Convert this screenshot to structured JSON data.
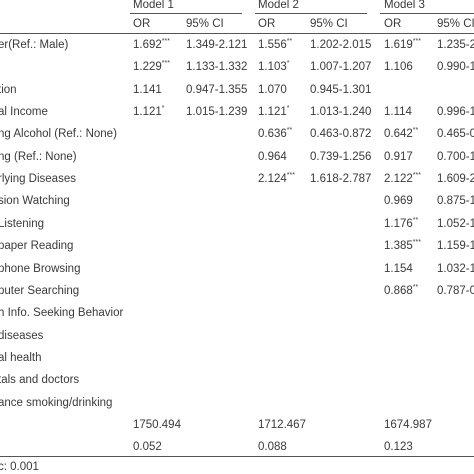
{
  "table": {
    "models": [
      "Model 1",
      "Model 2",
      "Model 3"
    ],
    "subheaders": [
      "OR",
      "95% CI",
      "OR",
      "95% CI",
      "OR",
      "95% CI"
    ],
    "rows": [
      {
        "label": "er(Ref.: Male)",
        "cells": [
          {
            "text": "1.692",
            "sup": "***"
          },
          {
            "text": "1.349-2.121"
          },
          {
            "text": "1.556",
            "sup": "**"
          },
          {
            "text": "1.202-2.015"
          },
          {
            "text": "1.619",
            "sup": "***"
          },
          {
            "text": "1.235-2."
          }
        ]
      },
      {
        "label": null,
        "cells": [
          {
            "text": "1.229",
            "sup": "***"
          },
          {
            "text": "1.133-1.332"
          },
          {
            "text": "1.103",
            "sup": "*"
          },
          {
            "text": "1.007-1.207"
          },
          {
            "text": "1.106"
          },
          {
            "text": "0.990-1."
          }
        ]
      },
      {
        "label": "tion",
        "cells": [
          {
            "text": "1.141"
          },
          {
            "text": "0.947-1.355"
          },
          {
            "text": "1.070"
          },
          {
            "text": "0.945-1.301"
          },
          null,
          null
        ]
      },
      {
        "label": "al Income",
        "cells": [
          {
            "text": "1.121",
            "sup": "*"
          },
          {
            "text": "1.015-1.239"
          },
          {
            "text": "1.121",
            "sup": "*"
          },
          {
            "text": "1.013-1.240"
          },
          {
            "text": "1.114"
          },
          {
            "text": "0.996-1"
          }
        ]
      },
      {
        "label": "ng Alcohol (Ref.: None)",
        "cells": [
          null,
          null,
          {
            "text": "0.636",
            "sup": "**"
          },
          {
            "text": "0.463-0.872"
          },
          {
            "text": "0.642",
            "sup": "**"
          },
          {
            "text": "0.465-0"
          }
        ]
      },
      {
        "label": "ng (Ref.: None)",
        "cells": [
          null,
          null,
          {
            "text": "0.964"
          },
          {
            "text": "0.739-1.256"
          },
          {
            "text": "0.917"
          },
          {
            "text": "0.700-1"
          }
        ]
      },
      {
        "label": "rlying Diseases",
        "cells": [
          null,
          null,
          {
            "text": "2.124",
            "sup": "***"
          },
          {
            "text": "1.618-2.787"
          },
          {
            "text": "2.122",
            "sup": "***"
          },
          {
            "text": "1.609-2"
          }
        ]
      },
      {
        "label": "sion Watching",
        "cells": [
          null,
          null,
          null,
          null,
          {
            "text": "0.969"
          },
          {
            "text": "0.875-1"
          }
        ]
      },
      {
        "label": " Listening",
        "cells": [
          null,
          null,
          null,
          null,
          {
            "text": "1.176",
            "sup": "**"
          },
          {
            "text": "1.052-1"
          }
        ]
      },
      {
        "label": "paper Reading",
        "cells": [
          null,
          null,
          null,
          null,
          {
            "text": "1.385",
            "sup": "***"
          },
          {
            "text": "1.159-1"
          }
        ]
      },
      {
        "label": "phone Browsing",
        "cells": [
          null,
          null,
          null,
          null,
          {
            "text": "1.154"
          },
          {
            "text": "1.032-1"
          }
        ]
      },
      {
        "label": "puter Searching",
        "cells": [
          null,
          null,
          null,
          null,
          {
            "text": "0.868",
            "sup": "**"
          },
          {
            "text": "0.787-0"
          }
        ]
      },
      {
        "label": "h Info. Seeking Behavior",
        "cells": [
          null,
          null,
          null,
          null,
          null,
          null
        ]
      },
      {
        "label": "diseases",
        "cells": [
          null,
          null,
          null,
          null,
          null,
          null
        ]
      },
      {
        "label": "al health",
        "cells": [
          null,
          null,
          null,
          null,
          null,
          null
        ]
      },
      {
        "label": "tals and doctors",
        "cells": [
          null,
          null,
          null,
          null,
          null,
          null
        ]
      },
      {
        "label": "ance smoking/drinking",
        "cells": [
          null,
          null,
          null,
          null,
          null,
          null
        ]
      },
      {
        "label": null,
        "cells": [
          {
            "text": "1750.494"
          },
          null,
          {
            "text": "1712.467"
          },
          null,
          {
            "text": "1674.987"
          },
          null
        ]
      },
      {
        "label": null,
        "cells": [
          {
            "text": "0.052"
          },
          null,
          {
            "text": "0.088"
          },
          null,
          {
            "text": "0.123"
          },
          null
        ]
      }
    ],
    "footnote": "c: 0.001"
  }
}
